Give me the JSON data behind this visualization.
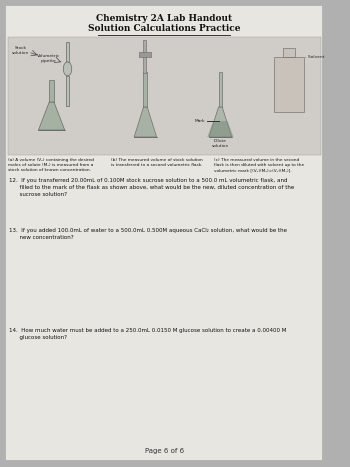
{
  "title_line1": "Chemistry 2A Lab Handout",
  "title_line2": "Solution Calculations Practice",
  "bg_color": "#b0b0b0",
  "paper_color": "#e8e6e0",
  "diagram_bg": "#d0cdc8",
  "q12": "12.  If you transferred 20.00mL of 0.100M stock sucrose solution to a 500.0 mL volumetric flask, and\n      filled to the mark of the flask as shown above, what would be the new, diluted concentration of the\n      sucrose solution?",
  "q13": "13.  If you added 100.0mL of water to a 500.0mL 0.500M aqueous CaCl₂ solution, what would be the\n      new concentration?",
  "q14": "14.  How much water must be added to a 250.0mL 0.0150 M glucose solution to create a 0.00400 M\n      glucose solution?",
  "page_footer": "Page 6 of 6",
  "caption_a": "(a) A volume (V₂) containing the desired\nmoles of solute (M₁) is measured from a\nstock solution of known concentration.",
  "caption_b": "(b) The measured volume of stock solution\nis transferred to a second volumetric flask.",
  "caption_c": "(c) The measured volume in the second\nflask is then diluted with solvent up to the\nvolumetric mark [(V₂)(M₂)=(V₁)(M₁)].",
  "label_stock": "Stock\nsolution",
  "label_pipette": "Volumetric\npipette",
  "label_mark": "Mark",
  "label_dilute": "Dilute\nsolution",
  "label_solvent": "- Solvent"
}
